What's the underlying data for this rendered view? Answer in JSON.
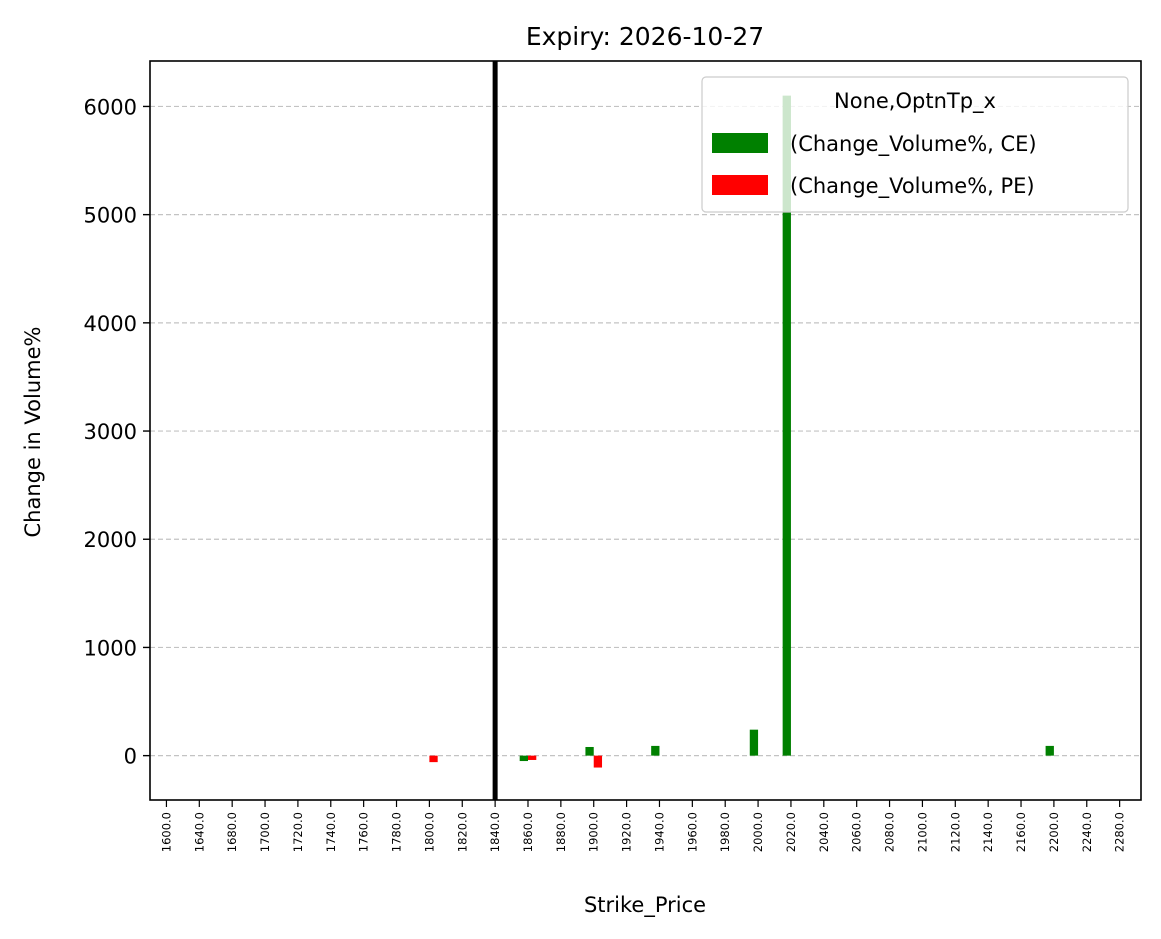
{
  "chart_data": {
    "type": "bar",
    "title": "Expiry: 2026-10-27",
    "xlabel": "Strike_Price",
    "ylabel": "Change in Volume%",
    "ylim": [
      -410,
      6420
    ],
    "yticks": [
      0,
      1000,
      2000,
      3000,
      4000,
      5000,
      6000
    ],
    "ytick_labels": [
      "0",
      "1000",
      "2000",
      "3000",
      "4000",
      "5000",
      "6000"
    ],
    "grid": "y-dashed",
    "categories": [
      "1600.0",
      "1640.0",
      "1680.0",
      "1700.0",
      "1720.0",
      "1740.0",
      "1760.0",
      "1780.0",
      "1800.0",
      "1820.0",
      "1840.0",
      "1860.0",
      "1880.0",
      "1900.0",
      "1920.0",
      "1940.0",
      "1960.0",
      "1980.0",
      "2000.0",
      "2020.0",
      "2040.0",
      "2060.0",
      "2080.0",
      "2100.0",
      "2120.0",
      "2140.0",
      "2160.0",
      "2200.0",
      "2240.0",
      "2280.0"
    ],
    "series": [
      {
        "name": "(Change_Volume%, CE)",
        "color": "#008000",
        "values": [
          0,
          0,
          0,
          0,
          0,
          0,
          0,
          0,
          0,
          0,
          0,
          -50,
          0,
          80,
          0,
          90,
          0,
          0,
          240,
          6100,
          0,
          0,
          0,
          0,
          0,
          0,
          0,
          90,
          0,
          0
        ]
      },
      {
        "name": "(Change_Volume%, PE)",
        "color": "#ff0000",
        "values": [
          0,
          0,
          0,
          0,
          0,
          0,
          0,
          0,
          -60,
          0,
          0,
          -40,
          0,
          -110,
          0,
          0,
          0,
          0,
          0,
          0,
          0,
          0,
          0,
          0,
          0,
          0,
          0,
          0,
          0,
          0
        ]
      }
    ],
    "legend": {
      "title": "None,OptnTp_x",
      "placement": "top-right"
    },
    "reference_line": {
      "category": "1840.0",
      "color": "#000000"
    }
  }
}
